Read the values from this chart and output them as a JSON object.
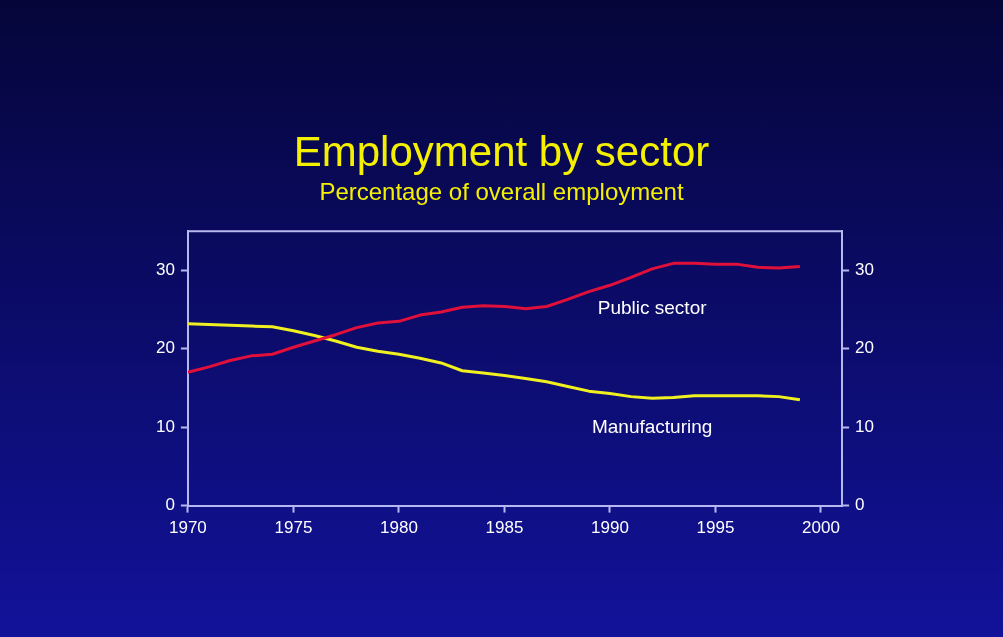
{
  "chart_data": {
    "type": "line",
    "title": "Employment by sector",
    "subtitle": "Percentage of overall employment",
    "x": [
      1970,
      1971,
      1972,
      1973,
      1974,
      1975,
      1976,
      1977,
      1978,
      1979,
      1980,
      1981,
      1982,
      1983,
      1984,
      1985,
      1986,
      1987,
      1988,
      1989,
      1990,
      1991,
      1992,
      1993,
      1994,
      1995,
      1996,
      1997,
      1998,
      1999
    ],
    "series": [
      {
        "name": "Public sector",
        "color": "#e0103a",
        "values": [
          17.0,
          17.7,
          18.5,
          19.1,
          19.3,
          20.2,
          21.0,
          21.8,
          22.7,
          23.3,
          23.5,
          24.3,
          24.7,
          25.3,
          25.5,
          25.4,
          25.1,
          25.4,
          26.3,
          27.3,
          28.1,
          29.1,
          30.2,
          30.9,
          30.9,
          30.8,
          30.8,
          30.4,
          30.3,
          30.5
        ]
      },
      {
        "name": "Manufacturing",
        "color": "#f0f020",
        "values": [
          23.2,
          23.1,
          23.0,
          22.9,
          22.8,
          22.3,
          21.7,
          21.0,
          20.2,
          19.7,
          19.3,
          18.8,
          18.2,
          17.2,
          16.9,
          16.6,
          16.2,
          15.8,
          15.2,
          14.6,
          14.3,
          13.9,
          13.7,
          13.8,
          14.0,
          14.0,
          14.0,
          14.0,
          13.9,
          13.5
        ]
      }
    ],
    "xlim": [
      1970,
      2001
    ],
    "xticks": [
      1970,
      1975,
      1980,
      1985,
      1990,
      1995,
      2000
    ],
    "ylim": [
      0,
      35
    ],
    "yticks": [
      0,
      10,
      20,
      30
    ],
    "y2lim": [
      0,
      35
    ],
    "y2ticks": [
      0,
      10,
      20,
      30
    ],
    "grid": false,
    "legend": false,
    "marker": "none",
    "line_style": "solid"
  }
}
